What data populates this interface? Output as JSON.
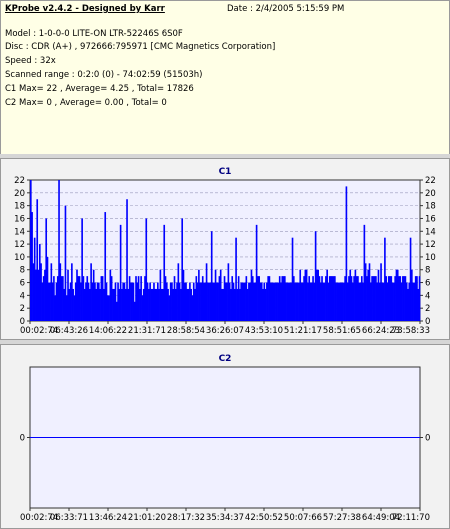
{
  "info": {
    "title": "KProbe v2.4.2 - Designed by Karr",
    "date": "Date : 2/4/2005 5:15:59 PM",
    "model": "Model : 1-0-0-0 LITE-ON LTR-52246S       6S0F",
    "disc": "Disc : CDR (A+) , 972666:795971 [CMC Magnetics Corporation]",
    "speed": "Speed : 32x",
    "scanned": "Scanned range : 0:2:0 (0) - 74:02:59 (51503h)",
    "c1_stats": "C1 Max= 22 , Average= 4.25 , Total= 17826",
    "c2_stats": "C2 Max= 0 , Average= 0.00 , Total= 0"
  },
  "colors": {
    "bar": "#0000ff",
    "plot_bg": "#f0f0ff",
    "panel_bg": "#f2f2f2",
    "info_bg": "#ffffe6",
    "title": "#000080",
    "grid": "#9999bb"
  },
  "chart_data": [
    {
      "type": "bar",
      "title": "C1",
      "ylim": [
        0,
        22
      ],
      "yticks": [
        0,
        2,
        4,
        6,
        8,
        10,
        12,
        14,
        16,
        18,
        20,
        22
      ],
      "xtick_labels": [
        "00:02:74",
        "06:43:26",
        "14:06:22",
        "21:31:71",
        "28:58:54",
        "36:26:07",
        "43:53:10",
        "51:21:17",
        "58:51:65",
        "66:24:23",
        "73:58:33"
      ],
      "x_range": [
        "00:02:74",
        "74:02:59"
      ],
      "grid": true,
      "avg_value": 4.25,
      "max_value": 22,
      "values": [
        22,
        17,
        9,
        13,
        8,
        7,
        8,
        12,
        9,
        6,
        7,
        8,
        7,
        10,
        6,
        6,
        9,
        6,
        7,
        4,
        6,
        7,
        8,
        9,
        7,
        7,
        5,
        6,
        4,
        8,
        5,
        6,
        9,
        5,
        4,
        6,
        8,
        7,
        7,
        6,
        9,
        7,
        5,
        6,
        7,
        6,
        5,
        9,
        6,
        8,
        6,
        5,
        6,
        6,
        5,
        7,
        7,
        5,
        6,
        6,
        4,
        4,
        8,
        7,
        5,
        5,
        6,
        3,
        6,
        5,
        6,
        5,
        6,
        6,
        5,
        7,
        5,
        7,
        6,
        6,
        6,
        3,
        7,
        6,
        7,
        5,
        7,
        4,
        5,
        7,
        6,
        6,
        5,
        6,
        5,
        5,
        6,
        5,
        5,
        6,
        5,
        8,
        5,
        5,
        6,
        7,
        6,
        5,
        4,
        6,
        6,
        5,
        7,
        5,
        6,
        9,
        6,
        5,
        4,
        8,
        6,
        6,
        5,
        5,
        6,
        5,
        4,
        6,
        5,
        7,
        6,
        8,
        6,
        6,
        7,
        6,
        6,
        9,
        6,
        6,
        6,
        6,
        6,
        6,
        8,
        6,
        6,
        7,
        8,
        5,
        5,
        7,
        6,
        6,
        9,
        6,
        5,
        7,
        6,
        5,
        8,
        5,
        7,
        5,
        6,
        6,
        6,
        6,
        7,
        5,
        6,
        6,
        8,
        7,
        6,
        6,
        6,
        7,
        7,
        6,
        6,
        5,
        6,
        5,
        6,
        7,
        7,
        6,
        6,
        6,
        6,
        6,
        6,
        6,
        7,
        6,
        7,
        7,
        7,
        6,
        6,
        6,
        6,
        6,
        7,
        7,
        6,
        6,
        6,
        6,
        8,
        6,
        6,
        7,
        8,
        8,
        6,
        7,
        6,
        6,
        7,
        6,
        5,
        8,
        8,
        7,
        6,
        7,
        6,
        6,
        7,
        8,
        6,
        7,
        7,
        7,
        7,
        7,
        6,
        6,
        6,
        6,
        6,
        6,
        6,
        7,
        6,
        6,
        7,
        8,
        7,
        6,
        7,
        8,
        7,
        7,
        6,
        6,
        7,
        6,
        7,
        9,
        7,
        8,
        9,
        6,
        7,
        7,
        7,
        7,
        6,
        8,
        6,
        9,
        6,
        6,
        6,
        7,
        6,
        7,
        7,
        7,
        6,
        6,
        7,
        8,
        8,
        7,
        7,
        6,
        7,
        7,
        7,
        6,
        5,
        6,
        7,
        8,
        6,
        6,
        7,
        7,
        5,
        7
      ],
      "spikes": [
        [
          0,
          22
        ],
        [
          5,
          19
        ],
        [
          12,
          16
        ],
        [
          22,
          22
        ],
        [
          27,
          18
        ],
        [
          40,
          16
        ],
        [
          58,
          17
        ],
        [
          70,
          15
        ],
        [
          75,
          19
        ],
        [
          90,
          16
        ],
        [
          104,
          15
        ],
        [
          118,
          16
        ],
        [
          141,
          14
        ],
        [
          160,
          13
        ],
        [
          176,
          15
        ],
        [
          204,
          13
        ],
        [
          222,
          14
        ],
        [
          246,
          21
        ],
        [
          260,
          15
        ],
        [
          276,
          13
        ],
        [
          296,
          13
        ],
        [
          313,
          13
        ]
      ]
    },
    {
      "type": "bar",
      "title": "C2",
      "ylim": [
        -1,
        1
      ],
      "yticks": [
        0
      ],
      "xtick_labels": [
        "00:02:74",
        "06:33:71",
        "13:46:24",
        "21:01:20",
        "28:17:32",
        "35:34:37",
        "42:50:52",
        "50:07:66",
        "57:27:38",
        "64:49:04",
        "72:11:70"
      ],
      "grid": false,
      "values": [
        0
      ]
    }
  ]
}
